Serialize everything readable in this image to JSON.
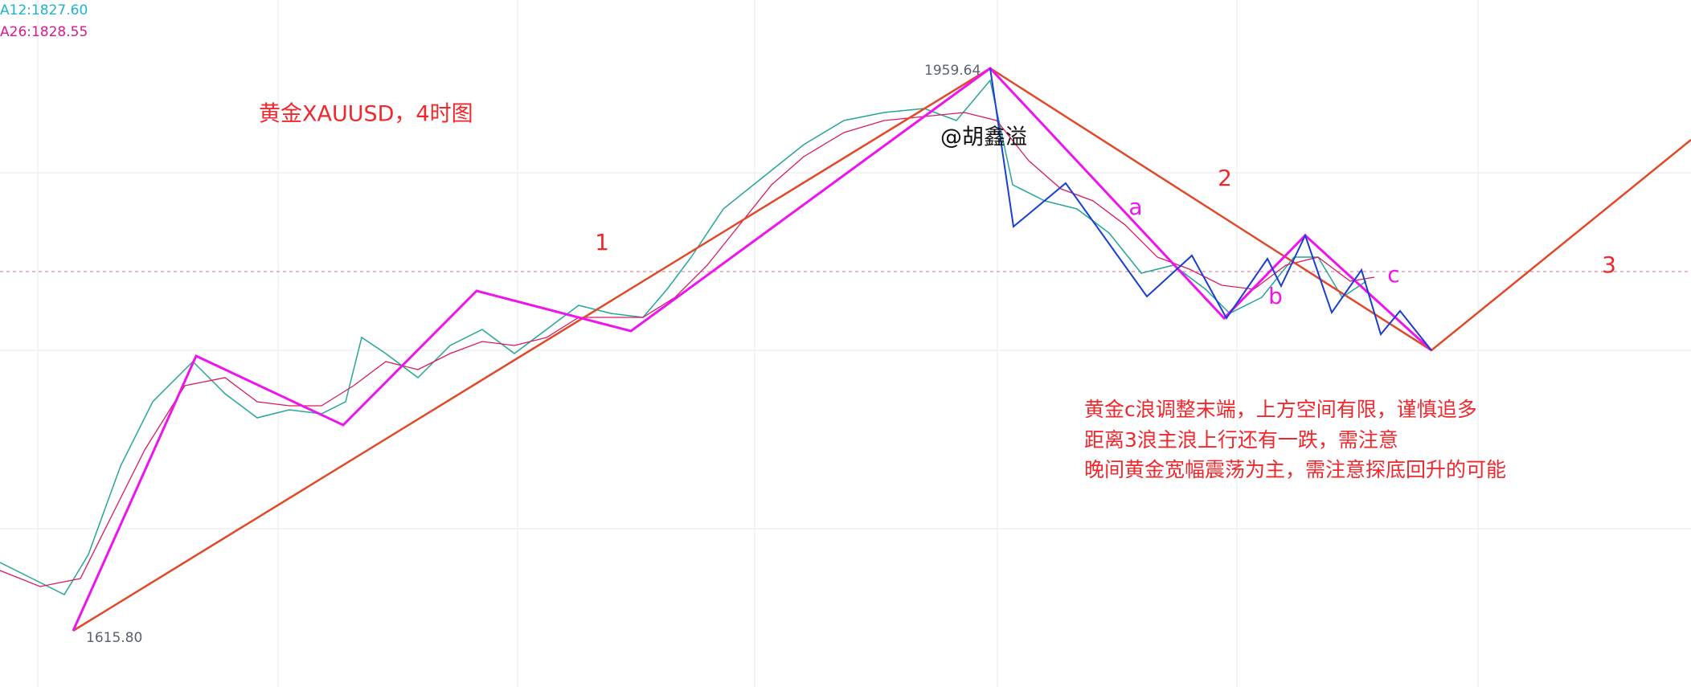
{
  "legend": {
    "ma12": "A12:1827.60",
    "ma26": "A26:1828.55"
  },
  "title": "黄金XAUUSD，4时图",
  "watermark": "@胡鑫溢",
  "price_labels": {
    "high": "1959.64",
    "low": "1615.80"
  },
  "wave_labels": [
    "1",
    "2",
    "3",
    "a",
    "b",
    "c"
  ],
  "notes": [
    "黄金c浪调整末端，上方空间有限，谨慎追多",
    "距离3浪主浪上行还有一跌，需注意",
    "晚间黄金宽幅震荡为主，需注意探底回升的可能"
  ]
}
